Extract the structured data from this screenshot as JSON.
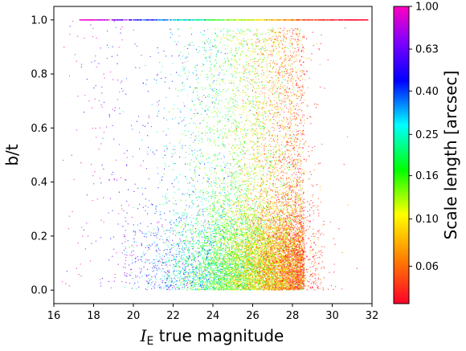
{
  "chart_data": {
    "type": "scatter",
    "xlabel_symbol": "I",
    "xlabel_subscript": "E",
    "xlabel_rest": " true magnitude",
    "ylabel": "b/t",
    "xlim": [
      16,
      32
    ],
    "ylim": [
      -0.05,
      1.05
    ],
    "xticks": [
      16,
      18,
      20,
      22,
      24,
      26,
      28,
      30,
      32
    ],
    "yticks": [
      0.0,
      0.2,
      0.4,
      0.6,
      0.8,
      1.0
    ],
    "grid": false,
    "colorbar": {
      "label": "Scale length [arcsec]",
      "scale": "log",
      "colormap": "gist_rainbow_r",
      "range": [
        0.04,
        1.0
      ],
      "ticks": [
        0.06,
        0.1,
        0.16,
        0.25,
        0.4,
        0.63,
        1.0
      ],
      "tick_labels": [
        "0.06",
        "0.10",
        "0.16",
        "0.25",
        "0.40",
        "0.63",
        "1.00"
      ]
    },
    "distribution": {
      "approx_point_count": 60000,
      "magnitude_peak": 27.5,
      "magnitude_range": [
        17,
        31
      ],
      "bt_concentrated_near": 0.0,
      "bt_line_at": 1.0,
      "bt_line_magnitude_range": [
        17.3,
        32
      ],
      "trend": "scale length decreases as magnitude increases"
    }
  }
}
